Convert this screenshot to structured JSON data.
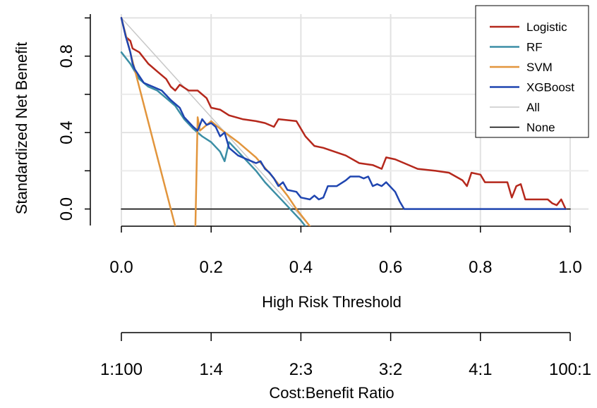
{
  "chart_data": {
    "type": "line",
    "title": "",
    "xlabel": "High Risk Threshold",
    "ylabel": "Standardized Net Benefit",
    "xlim": [
      0.0,
      1.0
    ],
    "ylim": [
      -0.09,
      1.02
    ],
    "x_ticks": [
      "0.0",
      "0.2",
      "0.4",
      "0.6",
      "0.8",
      "1.0"
    ],
    "x_tick_values": [
      0.0,
      0.2,
      0.4,
      0.6,
      0.8,
      1.0
    ],
    "y_ticks": [
      "0.0",
      "0.4",
      "0.8"
    ],
    "y_tick_values": [
      0.0,
      0.4,
      0.8
    ],
    "grid": true,
    "legend_position": "top-right",
    "secondary_axis": {
      "label": "Cost:Benefit Ratio",
      "ticks": [
        "1:100",
        "1:4",
        "2:3",
        "3:2",
        "4:1",
        "100:1"
      ]
    },
    "series": [
      {
        "name": "All",
        "color": "#c8c8c8",
        "width": 1.5,
        "points": [
          [
            0.0,
            1.0
          ],
          [
            0.42,
            -0.09
          ]
        ]
      },
      {
        "name": "None",
        "color": "#000000",
        "width": 1.5,
        "points": [
          [
            0.0,
            0.0
          ],
          [
            1.0,
            0.0
          ]
        ]
      },
      {
        "name": "Logistic",
        "color": "#b5281c",
        "width": 2.5,
        "points": [
          [
            0.0,
            1.0
          ],
          [
            0.01,
            0.9
          ],
          [
            0.02,
            0.88
          ],
          [
            0.025,
            0.84
          ],
          [
            0.04,
            0.82
          ],
          [
            0.06,
            0.76
          ],
          [
            0.08,
            0.72
          ],
          [
            0.1,
            0.68
          ],
          [
            0.11,
            0.64
          ],
          [
            0.12,
            0.62
          ],
          [
            0.13,
            0.65
          ],
          [
            0.15,
            0.62
          ],
          [
            0.17,
            0.62
          ],
          [
            0.19,
            0.58
          ],
          [
            0.2,
            0.53
          ],
          [
            0.22,
            0.52
          ],
          [
            0.24,
            0.49
          ],
          [
            0.27,
            0.47
          ],
          [
            0.3,
            0.46
          ],
          [
            0.32,
            0.45
          ],
          [
            0.34,
            0.43
          ],
          [
            0.35,
            0.47
          ],
          [
            0.39,
            0.46
          ],
          [
            0.41,
            0.38
          ],
          [
            0.43,
            0.33
          ],
          [
            0.45,
            0.32
          ],
          [
            0.5,
            0.28
          ],
          [
            0.53,
            0.24
          ],
          [
            0.56,
            0.23
          ],
          [
            0.58,
            0.21
          ],
          [
            0.59,
            0.27
          ],
          [
            0.61,
            0.26
          ],
          [
            0.63,
            0.24
          ],
          [
            0.66,
            0.21
          ],
          [
            0.7,
            0.2
          ],
          [
            0.73,
            0.19
          ],
          [
            0.76,
            0.15
          ],
          [
            0.77,
            0.12
          ],
          [
            0.78,
            0.19
          ],
          [
            0.8,
            0.18
          ],
          [
            0.81,
            0.14
          ],
          [
            0.86,
            0.14
          ],
          [
            0.87,
            0.06
          ],
          [
            0.88,
            0.12
          ],
          [
            0.89,
            0.13
          ],
          [
            0.9,
            0.05
          ],
          [
            0.95,
            0.05
          ],
          [
            0.96,
            0.03
          ],
          [
            0.97,
            0.02
          ],
          [
            0.98,
            0.05
          ],
          [
            0.99,
            0.0
          ]
        ]
      },
      {
        "name": "RF",
        "color": "#3b8ea5",
        "width": 2.5,
        "points": [
          [
            0.0,
            0.82
          ],
          [
            0.02,
            0.76
          ],
          [
            0.04,
            0.68
          ],
          [
            0.06,
            0.64
          ],
          [
            0.08,
            0.62
          ],
          [
            0.1,
            0.58
          ],
          [
            0.12,
            0.54
          ],
          [
            0.14,
            0.47
          ],
          [
            0.16,
            0.42
          ],
          [
            0.18,
            0.38
          ],
          [
            0.2,
            0.35
          ],
          [
            0.22,
            0.3
          ],
          [
            0.23,
            0.25
          ],
          [
            0.24,
            0.35
          ],
          [
            0.26,
            0.3
          ],
          [
            0.28,
            0.25
          ],
          [
            0.3,
            0.2
          ],
          [
            0.32,
            0.14
          ],
          [
            0.34,
            0.09
          ],
          [
            0.36,
            0.04
          ],
          [
            0.38,
            -0.01
          ],
          [
            0.4,
            -0.06
          ],
          [
            0.41,
            -0.09
          ]
        ]
      },
      {
        "name": "SVM",
        "color": "#e2953c",
        "width": 2.5,
        "segments": [
          [
            [
              0.0,
              1.0
            ],
            [
              0.12,
              -0.09
            ]
          ],
          [
            [
              0.165,
              -0.09
            ],
            [
              0.17,
              0.48
            ],
            [
              0.175,
              0.41
            ],
            [
              0.2,
              0.46
            ],
            [
              0.22,
              0.42
            ],
            [
              0.26,
              0.35
            ],
            [
              0.3,
              0.27
            ],
            [
              0.34,
              0.16
            ],
            [
              0.37,
              0.07
            ],
            [
              0.39,
              0.0
            ],
            [
              0.42,
              -0.09
            ]
          ]
        ]
      },
      {
        "name": "XGBoost",
        "color": "#1f45b0",
        "width": 2.5,
        "points": [
          [
            0.0,
            1.0
          ],
          [
            0.01,
            0.9
          ],
          [
            0.02,
            0.82
          ],
          [
            0.025,
            0.76
          ],
          [
            0.03,
            0.73
          ],
          [
            0.05,
            0.66
          ],
          [
            0.07,
            0.64
          ],
          [
            0.09,
            0.62
          ],
          [
            0.11,
            0.57
          ],
          [
            0.13,
            0.53
          ],
          [
            0.14,
            0.48
          ],
          [
            0.16,
            0.43
          ],
          [
            0.17,
            0.41
          ],
          [
            0.18,
            0.47
          ],
          [
            0.19,
            0.44
          ],
          [
            0.2,
            0.45
          ],
          [
            0.21,
            0.43
          ],
          [
            0.22,
            0.38
          ],
          [
            0.23,
            0.4
          ],
          [
            0.24,
            0.32
          ],
          [
            0.26,
            0.28
          ],
          [
            0.28,
            0.26
          ],
          [
            0.29,
            0.25
          ],
          [
            0.3,
            0.24
          ],
          [
            0.31,
            0.25
          ],
          [
            0.32,
            0.21
          ],
          [
            0.33,
            0.19
          ],
          [
            0.34,
            0.16
          ],
          [
            0.35,
            0.12
          ],
          [
            0.36,
            0.14
          ],
          [
            0.37,
            0.1
          ],
          [
            0.39,
            0.09
          ],
          [
            0.4,
            0.06
          ],
          [
            0.42,
            0.05
          ],
          [
            0.43,
            0.07
          ],
          [
            0.44,
            0.05
          ],
          [
            0.45,
            0.06
          ],
          [
            0.46,
            0.12
          ],
          [
            0.48,
            0.12
          ],
          [
            0.5,
            0.15
          ],
          [
            0.51,
            0.17
          ],
          [
            0.53,
            0.17
          ],
          [
            0.54,
            0.16
          ],
          [
            0.55,
            0.17
          ],
          [
            0.56,
            0.12
          ],
          [
            0.57,
            0.13
          ],
          [
            0.58,
            0.12
          ],
          [
            0.59,
            0.14
          ],
          [
            0.61,
            0.09
          ],
          [
            0.62,
            0.04
          ],
          [
            0.63,
            0.0
          ],
          [
            0.99,
            0.0
          ]
        ]
      }
    ]
  },
  "legend": {
    "items": [
      {
        "label": "Logistic",
        "color": "#b5281c"
      },
      {
        "label": "RF",
        "color": "#3b8ea5"
      },
      {
        "label": "SVM",
        "color": "#e2953c"
      },
      {
        "label": "XGBoost",
        "color": "#1f45b0"
      },
      {
        "label": "All",
        "color": "#c8c8c8"
      },
      {
        "label": "None",
        "color": "#000000"
      }
    ]
  }
}
